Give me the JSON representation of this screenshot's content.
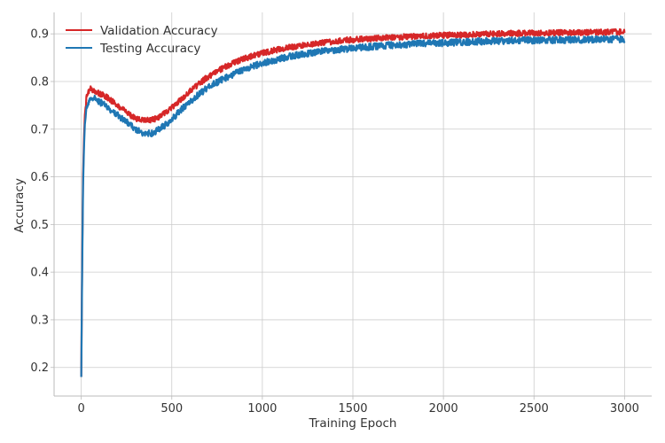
{
  "chart_data": {
    "type": "line",
    "title": "",
    "xlabel": "Training Epoch",
    "ylabel": "Accuracy",
    "xlim": [
      -150,
      3150
    ],
    "ylim": [
      0.14,
      0.945
    ],
    "xticks": [
      0,
      500,
      1000,
      1500,
      2000,
      2500,
      3000
    ],
    "yticks": [
      0.2,
      0.3,
      0.4,
      0.5,
      0.6,
      0.7,
      0.8,
      0.9
    ],
    "grid": true,
    "legend_position": "top-left",
    "series": [
      {
        "name": "Validation Accuracy",
        "color": "#d62728",
        "noise": 0.006,
        "points": [
          [
            0,
            0.18
          ],
          [
            5,
            0.42
          ],
          [
            10,
            0.6
          ],
          [
            15,
            0.68
          ],
          [
            20,
            0.73
          ],
          [
            30,
            0.77
          ],
          [
            40,
            0.78
          ],
          [
            50,
            0.785
          ],
          [
            70,
            0.782
          ],
          [
            100,
            0.775
          ],
          [
            150,
            0.765
          ],
          [
            200,
            0.75
          ],
          [
            250,
            0.735
          ],
          [
            300,
            0.722
          ],
          [
            350,
            0.718
          ],
          [
            400,
            0.72
          ],
          [
            450,
            0.73
          ],
          [
            500,
            0.745
          ],
          [
            550,
            0.762
          ],
          [
            600,
            0.78
          ],
          [
            700,
            0.81
          ],
          [
            800,
            0.832
          ],
          [
            900,
            0.848
          ],
          [
            1000,
            0.86
          ],
          [
            1100,
            0.868
          ],
          [
            1200,
            0.875
          ],
          [
            1300,
            0.88
          ],
          [
            1400,
            0.884
          ],
          [
            1500,
            0.888
          ],
          [
            1600,
            0.89
          ],
          [
            1700,
            0.892
          ],
          [
            1800,
            0.894
          ],
          [
            1900,
            0.896
          ],
          [
            2000,
            0.897
          ],
          [
            2200,
            0.899
          ],
          [
            2400,
            0.901
          ],
          [
            2600,
            0.902
          ],
          [
            2800,
            0.903
          ],
          [
            3000,
            0.904
          ]
        ]
      },
      {
        "name": "Testing Accuracy",
        "color": "#1f77b4",
        "noise": 0.007,
        "points": [
          [
            0,
            0.18
          ],
          [
            5,
            0.4
          ],
          [
            10,
            0.58
          ],
          [
            15,
            0.66
          ],
          [
            20,
            0.71
          ],
          [
            30,
            0.745
          ],
          [
            40,
            0.755
          ],
          [
            50,
            0.762
          ],
          [
            70,
            0.765
          ],
          [
            100,
            0.758
          ],
          [
            150,
            0.745
          ],
          [
            200,
            0.73
          ],
          [
            250,
            0.715
          ],
          [
            300,
            0.7
          ],
          [
            350,
            0.69
          ],
          [
            400,
            0.692
          ],
          [
            450,
            0.705
          ],
          [
            500,
            0.72
          ],
          [
            550,
            0.74
          ],
          [
            600,
            0.758
          ],
          [
            700,
            0.788
          ],
          [
            800,
            0.808
          ],
          [
            900,
            0.826
          ],
          [
            1000,
            0.838
          ],
          [
            1100,
            0.848
          ],
          [
            1200,
            0.856
          ],
          [
            1300,
            0.862
          ],
          [
            1400,
            0.866
          ],
          [
            1500,
            0.87
          ],
          [
            1600,
            0.873
          ],
          [
            1700,
            0.876
          ],
          [
            1800,
            0.878
          ],
          [
            1900,
            0.88
          ],
          [
            2000,
            0.881
          ],
          [
            2200,
            0.884
          ],
          [
            2400,
            0.886
          ],
          [
            2600,
            0.887
          ],
          [
            2800,
            0.888
          ],
          [
            3000,
            0.889
          ]
        ]
      }
    ]
  }
}
